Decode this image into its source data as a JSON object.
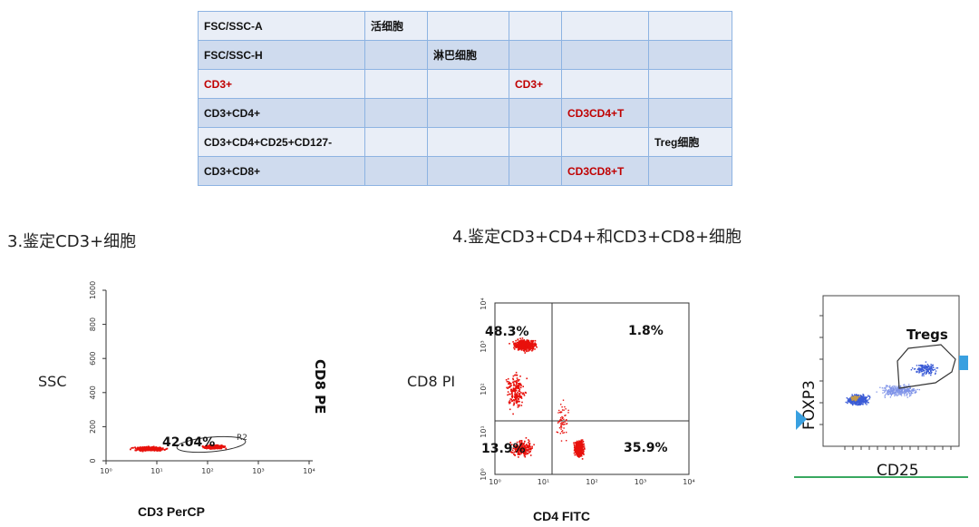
{
  "table": {
    "rows": [
      [
        "FSC/SSC-A",
        "活细胞",
        "",
        "",
        "",
        ""
      ],
      [
        "FSC/SSC-H",
        "",
        "淋巴细胞",
        "",
        "",
        ""
      ],
      [
        "CD3+",
        "",
        "",
        "CD3+",
        "",
        ""
      ],
      [
        "CD3+CD4+",
        "",
        "",
        "",
        "CD3CD4+T",
        ""
      ],
      [
        "CD3+CD4+CD25+CD127-",
        "",
        "",
        "",
        "",
        "Treg细胞"
      ],
      [
        "CD3+CD8+",
        "",
        "",
        "",
        "CD3CD8+T",
        ""
      ]
    ],
    "red_color": "#c00000"
  },
  "headings": {
    "left": "3.鉴定CD3+细胞",
    "right": "4.鉴定CD3+CD4+和CD3+CD8+细胞"
  },
  "plot1": {
    "y_side_label": "SSC",
    "x_title": "CD3 PerCP",
    "rotated_label": "CD8 PE",
    "gate_percent": "42.04%",
    "gate_name": "R2",
    "y_ticks": [
      "0",
      "200",
      "400",
      "600",
      "800",
      "1000"
    ],
    "x_ticks": [
      "10⁰",
      "10¹",
      "10²",
      "10³",
      "10⁴"
    ]
  },
  "plot2": {
    "y_side_label": "CD8 PI",
    "x_title": "CD4 FITC",
    "quadrants": {
      "upper_left": "48.3%",
      "upper_right": "1.8%",
      "lower_left": "13.9%",
      "lower_right": "35.9%"
    },
    "ticks": [
      "10⁰",
      "10¹",
      "10²",
      "10³",
      "10⁴"
    ]
  },
  "plot3": {
    "y_label": "FOXP3",
    "x_label": "CD25",
    "gate_name": "Tregs"
  },
  "colors": {
    "dots_red": "#e8110c",
    "dots_blue": "#3b5bd6",
    "table_border": "#8db3e2",
    "marker": "#39a0e0",
    "baseline": "#39a860"
  }
}
